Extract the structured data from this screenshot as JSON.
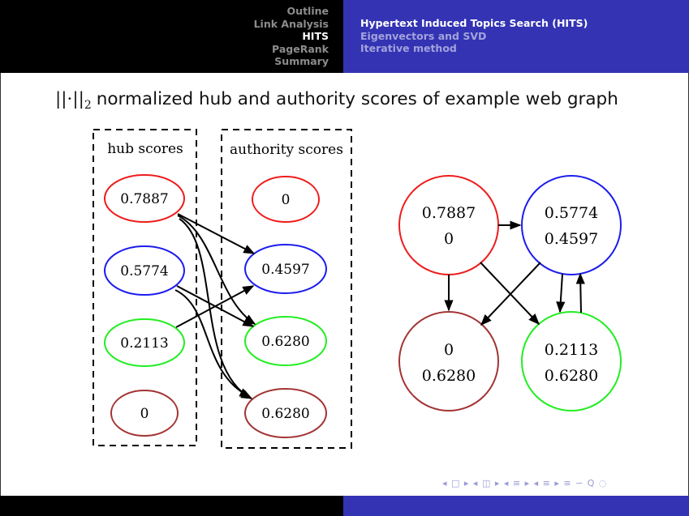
{
  "header": {
    "sections": [
      {
        "label": "Outline",
        "active": false
      },
      {
        "label": "Link Analysis",
        "active": false
      },
      {
        "label": "HITS",
        "active": true
      },
      {
        "label": "PageRank",
        "active": false
      },
      {
        "label": "Summary",
        "active": false
      }
    ],
    "subsections": [
      {
        "label": "Hypertext Induced Topics Search (HITS)",
        "active": true
      },
      {
        "label": "Eigenvectors and SVD",
        "active": false
      },
      {
        "label": "Iterative method",
        "active": false
      }
    ]
  },
  "slide": {
    "title_symbol": "||·||",
    "title_subscript": "2",
    "title_text": "normalized hub and authority scores of example web graph"
  },
  "bipartite": {
    "hub_label": "hub scores",
    "authority_label": "authority scores",
    "hubs": [
      "0.7887",
      "0.5774",
      "0.2113",
      "0"
    ],
    "authorities": [
      "0",
      "0.4597",
      "0.6280",
      "0.6280"
    ]
  },
  "graph": {
    "nodes": [
      {
        "hub": "0.7887",
        "authority": "0"
      },
      {
        "hub": "0.5774",
        "authority": "0.4597"
      },
      {
        "hub": "0",
        "authority": "0.6280"
      },
      {
        "hub": "0.2113",
        "authority": "0.6280"
      }
    ]
  },
  "colors": {
    "red": "#ee1c1c",
    "blue": "#1c1cee",
    "green": "#22ee22",
    "brown": "#a33434",
    "header_blue": "#3333b3"
  },
  "footer": {
    "nav_symbols": "◂ □ ▸  ◂ ◫ ▸  ◂ ≡ ▸  ◂ ≡ ▸   ≡   ∽ Q ◌"
  }
}
